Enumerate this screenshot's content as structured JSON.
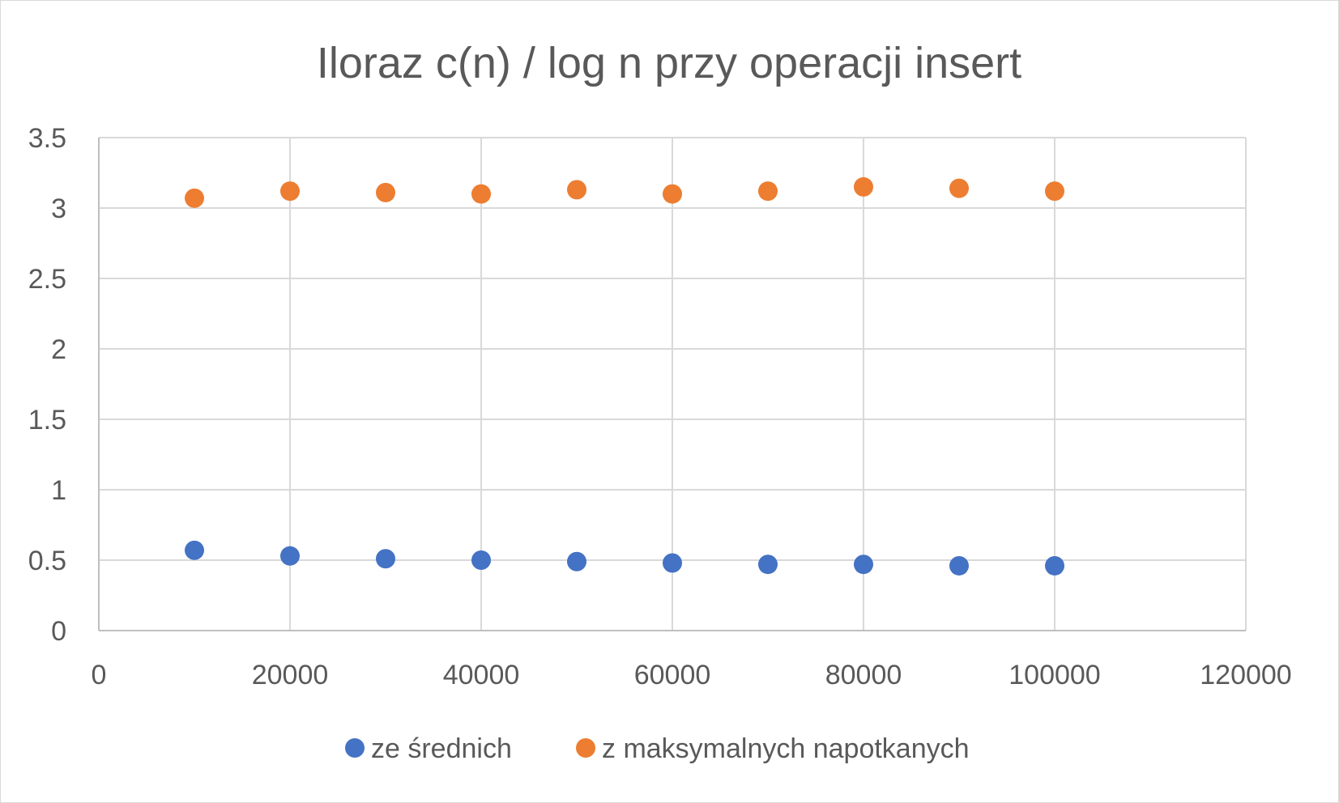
{
  "chart_data": {
    "type": "scatter",
    "title": "Iloraz c(n) / log n przy operacji insert",
    "xlabel": "",
    "ylabel": "",
    "xlim": [
      0,
      120000
    ],
    "ylim": [
      0,
      3.5
    ],
    "x_ticks": [
      "0",
      "20000",
      "40000",
      "60000",
      "80000",
      "100000",
      "120000"
    ],
    "y_ticks": [
      "0",
      "0.5",
      "1",
      "1.5",
      "2",
      "2.5",
      "3",
      "3.5"
    ],
    "grid": true,
    "legend_position": "bottom",
    "x": [
      10000,
      20000,
      30000,
      40000,
      50000,
      60000,
      70000,
      80000,
      90000,
      100000
    ],
    "series": [
      {
        "name": "ze średnich",
        "color": "#4472c4",
        "values": [
          0.57,
          0.53,
          0.51,
          0.5,
          0.49,
          0.48,
          0.47,
          0.47,
          0.46,
          0.46
        ]
      },
      {
        "name": "z maksymalnych napotkanych",
        "color": "#ed7d31",
        "values": [
          3.07,
          3.12,
          3.11,
          3.1,
          3.13,
          3.1,
          3.12,
          3.15,
          3.14,
          3.12
        ]
      }
    ]
  }
}
